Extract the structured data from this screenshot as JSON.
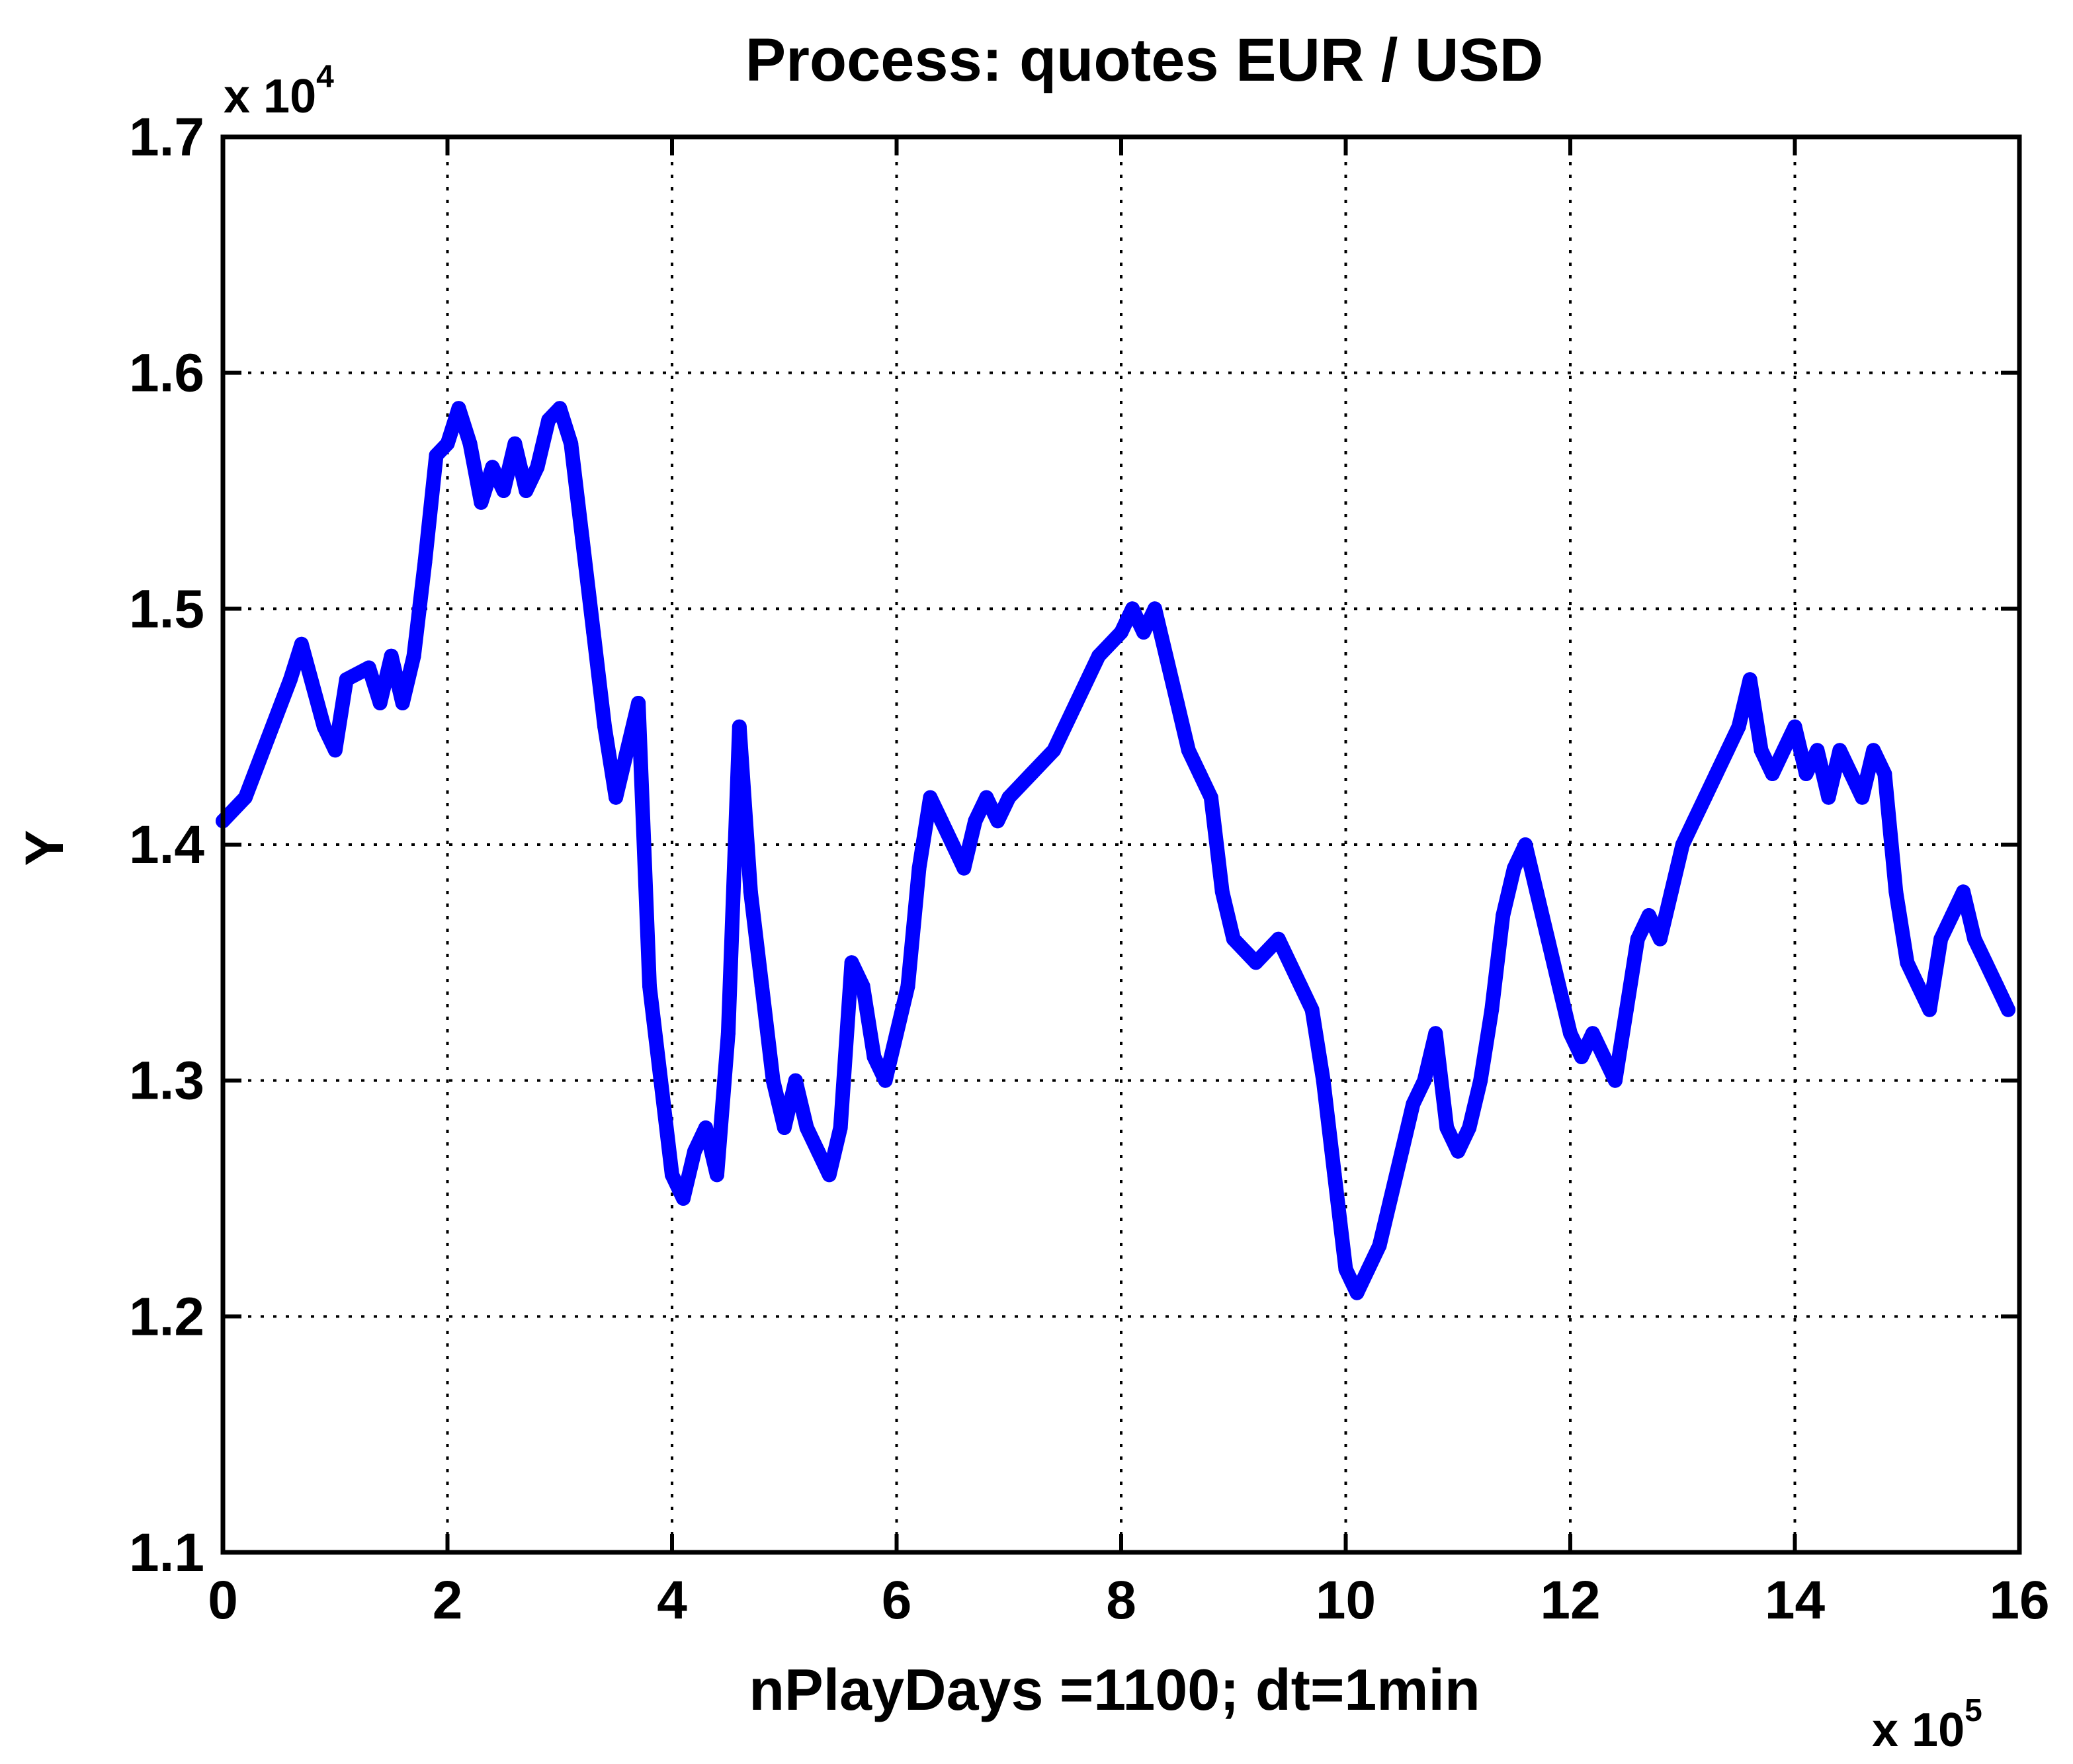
{
  "chart_data": {
    "type": "line",
    "title": "Process:  quotes EUR / USD",
    "xlabel": "nPlayDays =1100;  dt=1min",
    "ylabel": "Y",
    "x_exponent_label": "x 10",
    "x_exponent": "5",
    "y_exponent_label": "x 10",
    "y_exponent": "4",
    "xlim": [
      0,
      16
    ],
    "ylim": [
      1.1,
      1.7
    ],
    "xticks": [
      0,
      2,
      4,
      6,
      8,
      10,
      12,
      14,
      16
    ],
    "xtick_labels": [
      "0",
      "2",
      "4",
      "6",
      "8",
      "10",
      "12",
      "14",
      "16"
    ],
    "yticks": [
      1.1,
      1.2,
      1.3,
      1.4,
      1.5,
      1.6,
      1.7
    ],
    "ytick_labels": [
      "1.1",
      "1.2",
      "1.3",
      "1.4",
      "1.5",
      "1.6",
      "1.7"
    ],
    "grid": true,
    "line_color": "#0000ff",
    "series": [
      {
        "x": [
          0,
          0.2,
          0.4,
          0.6,
          0.7,
          0.9,
          1.0,
          1.1,
          1.3,
          1.4,
          1.5,
          1.6,
          1.7,
          1.8,
          1.9,
          2.0,
          2.1,
          2.2,
          2.3,
          2.4,
          2.5,
          2.6,
          2.7,
          2.8,
          2.9,
          3.0,
          3.1,
          3.2,
          3.3,
          3.4,
          3.5,
          3.6,
          3.7,
          3.8,
          3.9,
          4.0,
          4.1,
          4.2,
          4.3,
          4.4,
          4.5,
          4.6,
          4.7,
          4.8,
          4.9,
          5.0,
          5.1,
          5.2,
          5.3,
          5.4,
          5.5,
          5.6,
          5.7,
          5.8,
          5.9,
          6.0,
          6.1,
          6.2,
          6.3,
          6.4,
          6.5,
          6.6,
          6.7,
          6.8,
          6.9,
          7.0,
          7.2,
          7.4,
          7.6,
          7.8,
          8.0,
          8.1,
          8.2,
          8.3,
          8.4,
          8.5,
          8.6,
          8.7,
          8.8,
          8.9,
          9.0,
          9.2,
          9.4,
          9.6,
          9.7,
          9.8,
          9.9,
          10.0,
          10.1,
          10.2,
          10.3,
          10.4,
          10.5,
          10.6,
          10.7,
          10.8,
          10.9,
          11.0,
          11.1,
          11.2,
          11.3,
          11.4,
          11.5,
          11.6,
          11.7,
          11.8,
          11.9,
          12.0,
          12.1,
          12.2,
          12.3,
          12.4,
          12.5,
          12.6,
          12.7,
          12.8,
          12.9,
          13.0,
          13.1,
          13.2,
          13.3,
          13.4,
          13.5,
          13.6,
          13.7,
          13.8,
          13.9,
          14.0,
          14.1,
          14.2,
          14.3,
          14.4,
          14.5,
          14.6,
          14.7,
          14.8,
          14.9,
          15.0,
          15.1,
          15.2,
          15.3,
          15.4,
          15.5,
          15.6,
          15.7,
          15.8,
          15.9
        ],
        "y": [
          1.41,
          1.42,
          1.445,
          1.47,
          1.485,
          1.45,
          1.44,
          1.47,
          1.475,
          1.46,
          1.48,
          1.46,
          1.48,
          1.52,
          1.565,
          1.57,
          1.585,
          1.57,
          1.545,
          1.56,
          1.55,
          1.57,
          1.55,
          1.56,
          1.58,
          1.585,
          1.57,
          1.53,
          1.49,
          1.45,
          1.42,
          1.44,
          1.46,
          1.34,
          1.3,
          1.26,
          1.25,
          1.27,
          1.28,
          1.26,
          1.32,
          1.45,
          1.38,
          1.34,
          1.3,
          1.28,
          1.3,
          1.28,
          1.27,
          1.26,
          1.28,
          1.35,
          1.34,
          1.31,
          1.3,
          1.32,
          1.34,
          1.39,
          1.42,
          1.41,
          1.4,
          1.39,
          1.41,
          1.42,
          1.41,
          1.42,
          1.43,
          1.44,
          1.46,
          1.48,
          1.49,
          1.5,
          1.49,
          1.5,
          1.48,
          1.46,
          1.44,
          1.43,
          1.42,
          1.38,
          1.36,
          1.35,
          1.36,
          1.34,
          1.33,
          1.3,
          1.26,
          1.22,
          1.21,
          1.22,
          1.23,
          1.25,
          1.27,
          1.29,
          1.3,
          1.32,
          1.28,
          1.27,
          1.28,
          1.3,
          1.33,
          1.37,
          1.39,
          1.4,
          1.38,
          1.36,
          1.34,
          1.32,
          1.31,
          1.32,
          1.31,
          1.3,
          1.33,
          1.36,
          1.37,
          1.36,
          1.38,
          1.4,
          1.41,
          1.42,
          1.43,
          1.44,
          1.45,
          1.47,
          1.44,
          1.43,
          1.44,
          1.45,
          1.43,
          1.44,
          1.42,
          1.44,
          1.43,
          1.42,
          1.44,
          1.43,
          1.38,
          1.35,
          1.34,
          1.33,
          1.36,
          1.37,
          1.38,
          1.36,
          1.35,
          1.34,
          1.33
        ]
      }
    ]
  }
}
